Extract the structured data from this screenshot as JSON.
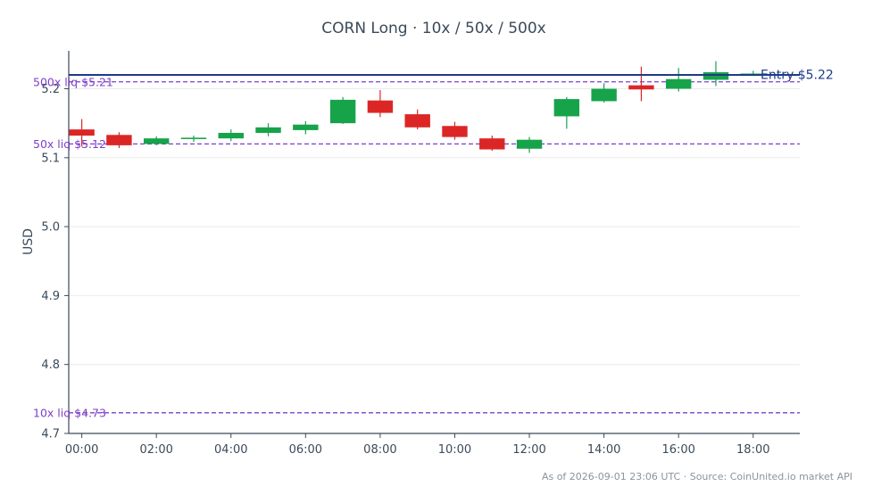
{
  "chart_data": {
    "type": "candlestick",
    "title": "CORN Long · 10x / 50x / 500x",
    "ylabel": "USD",
    "ylim": [
      4.7,
      5.255
    ],
    "yticks": [
      4.7,
      4.8,
      4.9,
      5.0,
      5.1,
      5.2
    ],
    "xlim": [
      -0.35,
      19.25
    ],
    "xticks": [
      0,
      2,
      4,
      6,
      8,
      10,
      12,
      14,
      16,
      18
    ],
    "xtick_labels": [
      "00:00",
      "02:00",
      "04:00",
      "06:00",
      "08:00",
      "10:00",
      "12:00",
      "14:00",
      "16:00",
      "18:00"
    ],
    "grid": true,
    "colors": {
      "up": "#16a34a",
      "down": "#dc2626",
      "entry": "#1e3a8a",
      "liq": "#7e3fc9"
    },
    "candles": [
      {
        "t": 0,
        "o": 5.141,
        "h": 5.156,
        "l": 5.116,
        "c": 5.132
      },
      {
        "t": 1,
        "o": 5.133,
        "h": 5.137,
        "l": 5.114,
        "c": 5.118
      },
      {
        "t": 2,
        "o": 5.12,
        "h": 5.131,
        "l": 5.118,
        "c": 5.128
      },
      {
        "t": 3,
        "o": 5.127,
        "h": 5.132,
        "l": 5.123,
        "c": 5.129
      },
      {
        "t": 4,
        "o": 5.128,
        "h": 5.141,
        "l": 5.124,
        "c": 5.136
      },
      {
        "t": 5,
        "o": 5.136,
        "h": 5.15,
        "l": 5.131,
        "c": 5.144
      },
      {
        "t": 6,
        "o": 5.14,
        "h": 5.153,
        "l": 5.134,
        "c": 5.148
      },
      {
        "t": 7,
        "o": 5.15,
        "h": 5.188,
        "l": 5.149,
        "c": 5.184
      },
      {
        "t": 8,
        "o": 5.183,
        "h": 5.198,
        "l": 5.159,
        "c": 5.165
      },
      {
        "t": 9,
        "o": 5.163,
        "h": 5.17,
        "l": 5.141,
        "c": 5.144
      },
      {
        "t": 10,
        "o": 5.146,
        "h": 5.152,
        "l": 5.126,
        "c": 5.13
      },
      {
        "t": 11,
        "o": 5.128,
        "h": 5.132,
        "l": 5.11,
        "c": 5.112
      },
      {
        "t": 12,
        "o": 5.113,
        "h": 5.13,
        "l": 5.107,
        "c": 5.126
      },
      {
        "t": 13,
        "o": 5.16,
        "h": 5.188,
        "l": 5.142,
        "c": 5.185
      },
      {
        "t": 14,
        "o": 5.182,
        "h": 5.208,
        "l": 5.18,
        "c": 5.2
      },
      {
        "t": 15,
        "o": 5.205,
        "h": 5.232,
        "l": 5.182,
        "c": 5.199
      },
      {
        "t": 16,
        "o": 5.2,
        "h": 5.23,
        "l": 5.196,
        "c": 5.214
      },
      {
        "t": 17,
        "o": 5.213,
        "h": 5.24,
        "l": 5.204,
        "c": 5.224
      },
      {
        "t": 18,
        "o": 5.221,
        "h": 5.226,
        "l": 5.22,
        "c": 5.222
      }
    ],
    "entry": {
      "value": 5.22,
      "label": "Entry $5.22"
    },
    "liquidations": [
      {
        "value": 5.21,
        "label": "500x liq $5.21"
      },
      {
        "value": 5.12,
        "label": "50x liq $5.12"
      },
      {
        "value": 4.73,
        "label": "10x liq $4.73"
      }
    ],
    "footer": "As of 2026-09-01 23:06 UTC · Source: CoinUnited.io market API"
  }
}
